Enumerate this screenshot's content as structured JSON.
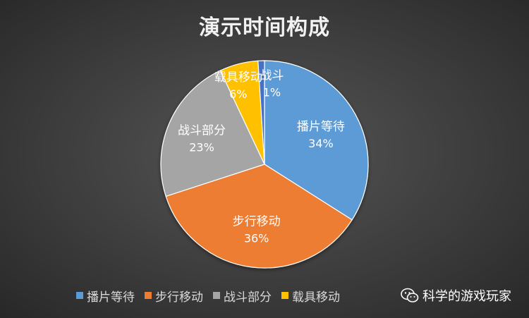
{
  "chart_data": {
    "type": "pie",
    "title": "演示时间构成",
    "slices": [
      {
        "label": "播片等待",
        "value": 34,
        "display": "34%",
        "color": "#5b9bd5"
      },
      {
        "label": "步行移动",
        "value": 36,
        "display": "36%",
        "color": "#ed7d31"
      },
      {
        "label": "战斗部分",
        "value": 23,
        "display": "23%",
        "color": "#a5a5a5"
      },
      {
        "label": "载具移动",
        "value": 6,
        "display": "6%",
        "color": "#ffc000"
      },
      {
        "label": "战斗",
        "value": 1,
        "display": "1%",
        "color": "#4472c4"
      }
    ],
    "legend": {
      "position": "bottom",
      "entries": [
        "播片等待",
        "步行移动",
        "战斗部分",
        "载具移动"
      ]
    }
  },
  "watermark": {
    "text": "科学的游戏玩家",
    "icon": "wechat-icon"
  }
}
